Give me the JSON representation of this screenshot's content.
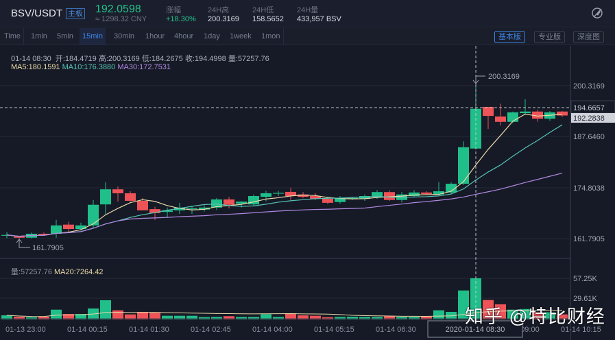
{
  "header": {
    "pair": "BSV/USDT",
    "board_tag": "主板",
    "last_price": "192.0598",
    "cny_price": "≈ 1298.32 CNY",
    "stats": [
      {
        "label": "涨幅",
        "value": "+18.30%",
        "color": "#23c088"
      },
      {
        "label": "24H高",
        "value": "200.3169"
      },
      {
        "label": "24H低",
        "value": "158.5652"
      },
      {
        "label": "24H量",
        "value": "433,957 BSV"
      }
    ],
    "theme_icon": "theme-toggle-icon"
  },
  "toolbar": {
    "timeframes": [
      "Time",
      "1min",
      "5min",
      "15min",
      "30min",
      "1hour",
      "4hour",
      "1day",
      "1week",
      "1mon"
    ],
    "active_timeframe": "15min",
    "views": [
      "基本版",
      "专业版",
      "深度图"
    ],
    "active_view": "基本版"
  },
  "info": {
    "date": "01-14 08:30",
    "open": "开:184.4719",
    "high": "高:200.3169",
    "low": "低:184.2675",
    "close": "收:194.4998",
    "volume": "量:57257.76",
    "ma5": "MA5:180.1591",
    "ma10": "MA10:176.3880",
    "ma30": "MA30:172.7531"
  },
  "volume_info": {
    "volume": "量:57257.76",
    "ma20": "MA20:7264.42"
  },
  "colors": {
    "up": "#20bf8a",
    "down": "#ee5358",
    "ma5": "#e8d9a8",
    "ma10": "#56c3b5",
    "ma30": "#b088e0",
    "ma20": "#e8d9a8",
    "accent": "#3d82e0"
  },
  "price_axis": [
    "200.3169",
    "194.6657",
    "192.2838",
    "187.6460",
    "174.8038",
    "161.7905"
  ],
  "volume_axis": [
    "57.25K",
    "29.61K"
  ],
  "markers": {
    "high": "200.3169",
    "low": "161.7905"
  },
  "time_axis": [
    "01-13 23:00",
    "01-14 00:15",
    "01-14 01:30",
    "01-14 02:45",
    "01-14 04:00",
    "01-14 05:15",
    "01-14 06:30",
    "01-14 09:00",
    "01-14 10:15"
  ],
  "crosshair_time": "2020-01-14 08:30",
  "watermark": "知乎 @特比财经",
  "chart_data": {
    "type": "candlestick",
    "interval": "15min",
    "ohlc": [
      [
        162.5,
        163.4,
        161.9,
        162.7
      ],
      [
        162.3,
        162.5,
        161.7905,
        162.0
      ],
      [
        162.0,
        163.3,
        161.8,
        163.0
      ],
      [
        163.0,
        163.3,
        162.5,
        162.7
      ],
      [
        163.0,
        166.5,
        162.0,
        165.1
      ],
      [
        165.3,
        166.0,
        163.5,
        164.2
      ],
      [
        164.2,
        165.8,
        163.8,
        165.1
      ],
      [
        165.1,
        171.5,
        164.4,
        170.3
      ],
      [
        170.4,
        176.0,
        167.9,
        174.2
      ],
      [
        174.2,
        174.9,
        171.1,
        173.2
      ],
      [
        173.2,
        173.7,
        171.0,
        171.3
      ],
      [
        171.3,
        172.0,
        168.9,
        168.9
      ],
      [
        169.2,
        169.8,
        166.5,
        168.2
      ],
      [
        168.5,
        169.6,
        167.0,
        168.9
      ],
      [
        168.9,
        170.8,
        168.0,
        169.6
      ],
      [
        169.2,
        169.8,
        168.0,
        169.4
      ],
      [
        169.1,
        170.2,
        168.6,
        169.6
      ],
      [
        169.6,
        172.0,
        169.0,
        171.65
      ],
      [
        171.65,
        172.3,
        169.4,
        170.3
      ],
      [
        170.6,
        171.2,
        169.6,
        171.1
      ],
      [
        170.4,
        172.9,
        169.9,
        172.5
      ],
      [
        172.3,
        173.8,
        171.2,
        173.2
      ],
      [
        173.2,
        173.8,
        172.5,
        173.3
      ],
      [
        173.55,
        174.6,
        171.5,
        172.5
      ],
      [
        172.9,
        173.5,
        172.0,
        172.3
      ],
      [
        172.5,
        173.2,
        171.5,
        171.8
      ],
      [
        171.8,
        172.3,
        170.5,
        170.8
      ],
      [
        171.0,
        172.5,
        170.6,
        172.0
      ],
      [
        171.8,
        172.3,
        171.5,
        172.0
      ],
      [
        171.8,
        172.9,
        171.3,
        172.5
      ],
      [
        172.3,
        174.0,
        171.8,
        173.5
      ],
      [
        173.5,
        173.9,
        171.3,
        171.5
      ],
      [
        171.5,
        173.5,
        170.9,
        172.9
      ],
      [
        172.5,
        174.0,
        172.2,
        173.4
      ],
      [
        173.4,
        173.7,
        172.8,
        173.0
      ],
      [
        172.9,
        176.0,
        172.7,
        173.7
      ],
      [
        173.4,
        176.0,
        173.1,
        175.6
      ],
      [
        175.6,
        186.3,
        175.3,
        184.8
      ],
      [
        184.4719,
        200.3169,
        184.2675,
        194.4998
      ],
      [
        194.97,
        194.97,
        189.4,
        192.7
      ],
      [
        192.55,
        195.8,
        190.3,
        191.2
      ],
      [
        191.2,
        193.8,
        190.9,
        193.6
      ],
      [
        193.4,
        196.9,
        193.0,
        193.8
      ],
      [
        193.8,
        194.3,
        191.2,
        192.0
      ],
      [
        192.0,
        193.9,
        191.5,
        193.6
      ],
      [
        193.8,
        193.9,
        192.4,
        192.8
      ]
    ],
    "volume_k": [
      5.7,
      3.8,
      2.9,
      3.8,
      13.6,
      7.6,
      7.6,
      15.2,
      26.7,
      12.7,
      7.0,
      10.5,
      9.5,
      5.1,
      5.1,
      5.1,
      3.2,
      3.5,
      4.5,
      3.5,
      3.5,
      7.3,
      3.5,
      8.5,
      5.7,
      5.1,
      3.0,
      3.5,
      3.8,
      3.5,
      3.5,
      4.5,
      3.5,
      3.5,
      4.0,
      12.7,
      10.5,
      40.3,
      57.26,
      27.0,
      21.0,
      13.6,
      14.5,
      10.0,
      10.0,
      7.0
    ],
    "price_range": [
      161.7905,
      200.3169
    ],
    "current_price_line": 194.6657,
    "last_price_tag": 192.2838
  }
}
